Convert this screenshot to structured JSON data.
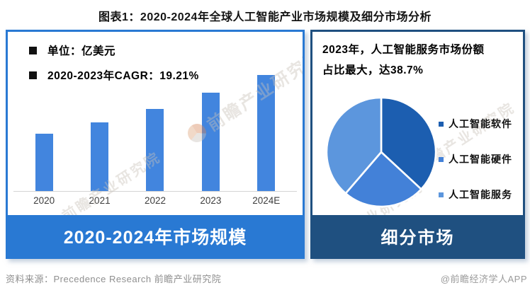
{
  "page_title": "图表1：2020-2024年全球人工智能产业市场规模及细分市场分析",
  "left_panel": {
    "legend": [
      "单位：亿美元",
      "2020-2023年CAGR：19.21%"
    ],
    "banner": "2020-2024年市场规模"
  },
  "right_panel": {
    "headline": [
      "2023年，人工智能服务市场份额",
      "占比最大，达38.7%"
    ],
    "banner": "细分市场"
  },
  "footer": {
    "source": "资料来源：Precedence Research 前瞻产业研究院",
    "credit": "@前瞻经济学人APP"
  },
  "watermark_text": "前瞻产业研究院",
  "colors": {
    "left_accent": "#2979D3",
    "bar_fill": "#4285DE",
    "right_accent": "#1F5080",
    "pie": [
      "#1C5EB0",
      "#4381D8",
      "#5C96DD"
    ]
  },
  "chart_data": [
    {
      "type": "bar",
      "title": "2020-2024年市场规模",
      "unit_label": "单位：亿美元",
      "annotation": "2020-2023年CAGR：19.21%",
      "categories": [
        "2020",
        "2021",
        "2022",
        "2023",
        "2024E"
      ],
      "values": [
        100,
        120,
        143,
        171,
        202
      ],
      "values_estimated": true,
      "value_basis": "index, 2020=100",
      "ylabel": "亿美元",
      "grid": false,
      "legend_position": "top-left"
    },
    {
      "type": "pie",
      "title": "细分市场",
      "year": "2023",
      "highlight": "2023年，人工智能服务市场份额占比最大，达38.7%",
      "labels": [
        "人工智能软件",
        "人工智能硬件",
        "人工智能服务"
      ],
      "values": [
        36.9,
        24.4,
        38.7
      ],
      "values_estimated_except_services": true,
      "start_angle": "top",
      "direction": "clockwise",
      "legend_position": "right"
    }
  ]
}
